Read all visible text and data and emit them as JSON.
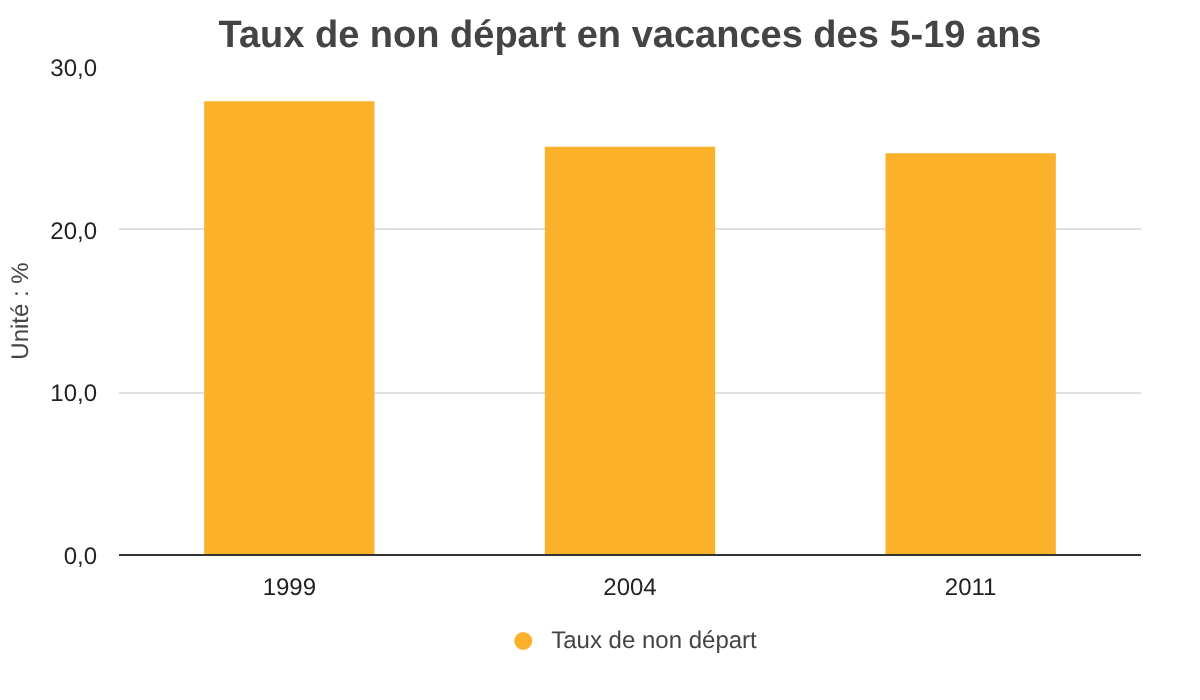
{
  "chart_data": {
    "type": "bar",
    "title": "Taux de non départ en vacances des 5-19 ans",
    "ylabel": "Unité : %",
    "categories": [
      "1999",
      "2004",
      "2011"
    ],
    "series": [
      {
        "name": "Taux de non départ",
        "color": "#fbb12a",
        "values": [
          27.9,
          25.1,
          24.7
        ]
      }
    ],
    "ylim": [
      0,
      30
    ],
    "yticks": [
      {
        "value": 0,
        "label": "0,0"
      },
      {
        "value": 10,
        "label": "10,0"
      },
      {
        "value": 20,
        "label": "20,0"
      },
      {
        "value": 30,
        "label": "30,0"
      }
    ],
    "grid": "y",
    "legend": "bottom",
    "marker": "circle"
  }
}
